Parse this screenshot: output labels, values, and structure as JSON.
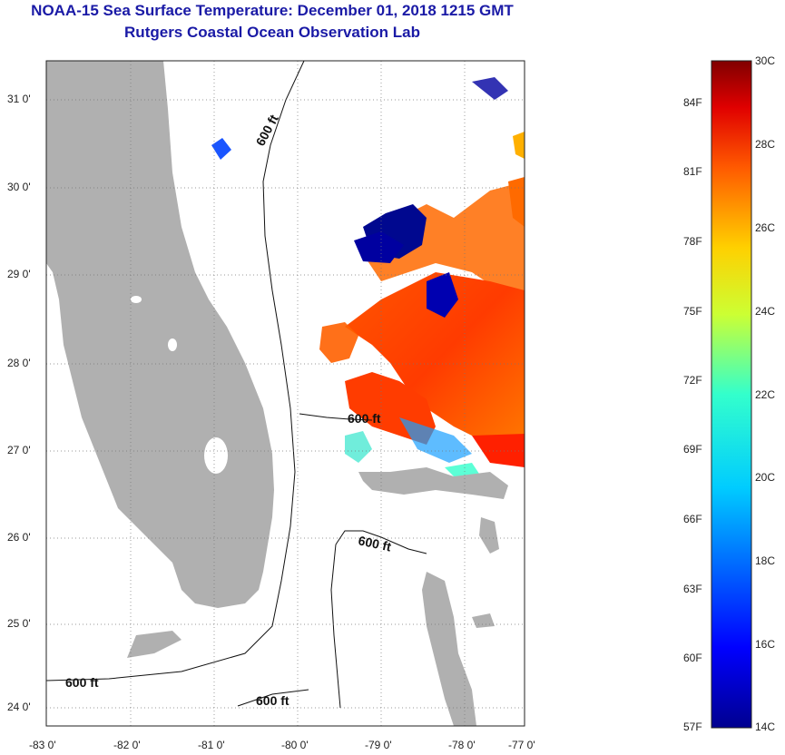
{
  "header": {
    "title": "NOAA-15 Sea Surface Temperature:  December 01, 2018 1215 GMT",
    "subtitle": "Rutgers Coastal Ocean Observation Lab"
  },
  "colors": {
    "title": "#1a1aa6",
    "land": "#b0b0b0",
    "grid": "#555555"
  },
  "latitude_labels": [
    "31 0'",
    "30 0'",
    "29 0'",
    "28 0'",
    "27 0'",
    "26 0'",
    "25 0'",
    "24 0'"
  ],
  "longitude_labels": [
    "-83 0'",
    "-82 0'",
    "-81 0'",
    "-80 0'",
    "-79 0'",
    "-78 0'",
    "-77 0'"
  ],
  "isobath_label": "600 ft",
  "colorbar": {
    "celsius": [
      "30C",
      "28C",
      "26C",
      "24C",
      "22C",
      "20C",
      "18C",
      "16C",
      "14C"
    ],
    "fahrenheit": [
      "84F",
      "81F",
      "78F",
      "75F",
      "72F",
      "69F",
      "66F",
      "63F",
      "60F",
      "57F"
    ]
  }
}
